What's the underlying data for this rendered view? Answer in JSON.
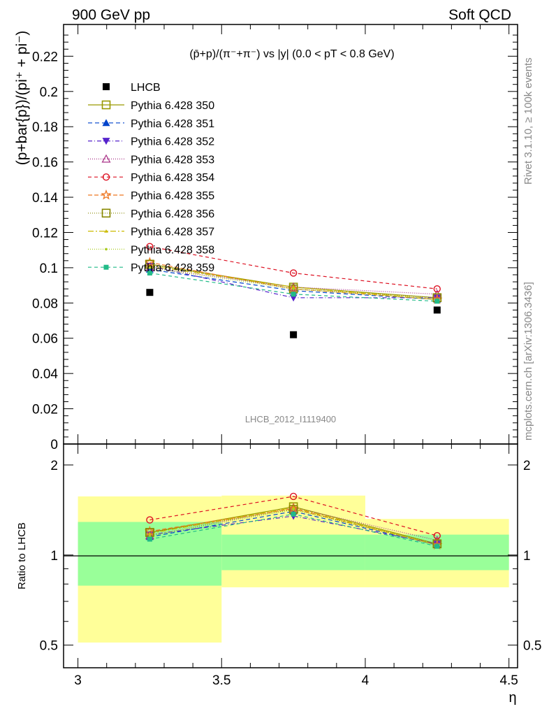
{
  "header": {
    "left": "900 GeV pp",
    "right": "Soft QCD"
  },
  "side_labels": {
    "top": "Rivet 3.1.10, ≥ 100k events",
    "bottom": "mcplots.cern.ch [arXiv:1306.3436]"
  },
  "watermark": "LHCB_2012_I1119400",
  "colors": {
    "band_yellow": "#ffff99",
    "band_green": "#99ff99"
  },
  "chart_data": [
    {
      "type": "scatter",
      "title": "(p̄+p)/(π⁻+π⁻) vs |y| (0.0 < pT < 0.8 GeV)",
      "ylabel": "(p+bar{p})/(pi⁺ + pi⁻)",
      "xlim": [
        2.95,
        4.53
      ],
      "ylim": [
        0,
        0.238
      ],
      "y_ticks": [
        {
          "v": 0,
          "label": "0"
        },
        {
          "v": 0.02,
          "label": "0.02"
        },
        {
          "v": 0.04,
          "label": "0.04"
        },
        {
          "v": 0.06,
          "label": "0.06"
        },
        {
          "v": 0.08,
          "label": "0.08"
        },
        {
          "v": 0.1,
          "label": "0.1"
        },
        {
          "v": 0.12,
          "label": "0.12"
        },
        {
          "v": 0.14,
          "label": "0.14"
        },
        {
          "v": 0.16,
          "label": "0.16"
        },
        {
          "v": 0.18,
          "label": "0.18"
        },
        {
          "v": 0.2,
          "label": "0.2"
        },
        {
          "v": 0.22,
          "label": "0.22"
        }
      ],
      "x": [
        3.25,
        3.75,
        4.25
      ],
      "data": {
        "name": "LHCB",
        "y": [
          0.086,
          0.062,
          0.076
        ]
      },
      "series": [
        {
          "name": "Pythia 6.428 350",
          "color": "#999900",
          "dash": "",
          "marker": "square-open",
          "y": [
            0.102,
            0.089,
            0.083
          ]
        },
        {
          "name": "Pythia 6.428 351",
          "color": "#0044cc",
          "dash": "6,4",
          "marker": "triangle-up-filled",
          "y": [
            0.099,
            0.087,
            0.082
          ]
        },
        {
          "name": "Pythia 6.428 352",
          "color": "#5522cc",
          "dash": "6,3,1,3",
          "marker": "triangle-down-filled",
          "y": [
            0.101,
            0.083,
            0.083
          ]
        },
        {
          "name": "Pythia 6.428 353",
          "color": "#aa3388",
          "dash": "1,2",
          "marker": "triangle-up-open",
          "y": [
            0.1,
            0.089,
            0.085
          ]
        },
        {
          "name": "Pythia 6.428 354",
          "color": "#dd1122",
          "dash": "5,4",
          "marker": "circle-open",
          "y": [
            0.112,
            0.097,
            0.088
          ]
        },
        {
          "name": "Pythia 6.428 355",
          "color": "#ee7722",
          "dash": "6,3",
          "marker": "star-open",
          "y": [
            0.103,
            0.088,
            0.082
          ]
        },
        {
          "name": "Pythia 6.428 356",
          "color": "#888800",
          "dash": "1,2",
          "marker": "square-open",
          "y": [
            0.102,
            0.088,
            0.083
          ]
        },
        {
          "name": "Pythia 6.428 357",
          "color": "#ccbb00",
          "dash": "8,3,2,3",
          "marker": "tri-small",
          "y": [
            0.101,
            0.089,
            0.082
          ]
        },
        {
          "name": "Pythia 6.428 358",
          "color": "#aacc22",
          "dash": "1,2",
          "marker": "dot",
          "y": [
            0.1,
            0.088,
            0.082
          ]
        },
        {
          "name": "Pythia 6.428 359",
          "color": "#22bb88",
          "dash": "5,4",
          "marker": "square-filled",
          "y": [
            0.097,
            0.085,
            0.081
          ]
        }
      ]
    },
    {
      "type": "scatter",
      "title": "",
      "xlabel": "η",
      "ylabel": "Ratio to LHCB",
      "log_y": true,
      "ylim": [
        0.42,
        2.35
      ],
      "y_ticks": [
        {
          "v": 0.5,
          "label": "0.5"
        },
        {
          "v": 1,
          "label": "1"
        },
        {
          "v": 2,
          "label": "2"
        }
      ],
      "x_ticks": [
        {
          "v": 3,
          "label": "3"
        },
        {
          "v": 3.5,
          "label": "3.5"
        },
        {
          "v": 4,
          "label": "4"
        },
        {
          "v": 4.5,
          "label": "4.5"
        }
      ],
      "bands": [
        {
          "x0": 3.0,
          "x1": 3.5,
          "yellow": [
            0.51,
            1.57
          ],
          "green": [
            0.79,
            1.29
          ]
        },
        {
          "x0": 3.5,
          "x1": 4.0,
          "yellow": [
            0.78,
            1.58
          ],
          "green": [
            0.89,
            1.17
          ]
        },
        {
          "x0": 4.0,
          "x1": 4.5,
          "yellow": [
            0.78,
            1.32
          ],
          "green": [
            0.89,
            1.17
          ]
        }
      ],
      "x": [
        3.25,
        3.75,
        4.25
      ],
      "ratios": [
        {
          "name": "Pythia 6.428 350",
          "y": [
            1.19,
            1.45,
            1.09
          ]
        },
        {
          "name": "Pythia 6.428 351",
          "y": [
            1.15,
            1.4,
            1.08
          ]
        },
        {
          "name": "Pythia 6.428 352",
          "y": [
            1.17,
            1.35,
            1.09
          ]
        },
        {
          "name": "Pythia 6.428 353",
          "y": [
            1.16,
            1.44,
            1.12
          ]
        },
        {
          "name": "Pythia 6.428 354",
          "y": [
            1.31,
            1.57,
            1.16
          ]
        },
        {
          "name": "Pythia 6.428 355",
          "y": [
            1.2,
            1.43,
            1.08
          ]
        },
        {
          "name": "Pythia 6.428 356",
          "y": [
            1.19,
            1.42,
            1.09
          ]
        },
        {
          "name": "Pythia 6.428 357",
          "y": [
            1.18,
            1.44,
            1.08
          ]
        },
        {
          "name": "Pythia 6.428 358",
          "y": [
            1.16,
            1.42,
            1.08
          ]
        },
        {
          "name": "Pythia 6.428 359",
          "y": [
            1.13,
            1.37,
            1.07
          ]
        }
      ]
    }
  ]
}
